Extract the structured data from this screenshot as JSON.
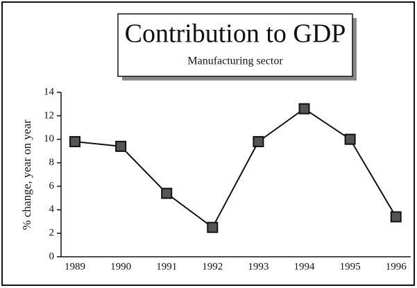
{
  "chart_data": {
    "type": "line",
    "title": "Contribution to GDP",
    "subtitle": "Manufacturing sector",
    "y_label": "% change, year on year",
    "categories": [
      "1989",
      "1990",
      "1991",
      "1992",
      "1993",
      "1994",
      "1995",
      "1996"
    ],
    "values": [
      9.8,
      9.4,
      5.4,
      2.5,
      9.8,
      12.6,
      10.0,
      3.4
    ],
    "color": "#111111",
    "ylim": [
      0,
      14
    ],
    "yticks": [
      0,
      2,
      4,
      6,
      8,
      10,
      12,
      14
    ]
  }
}
